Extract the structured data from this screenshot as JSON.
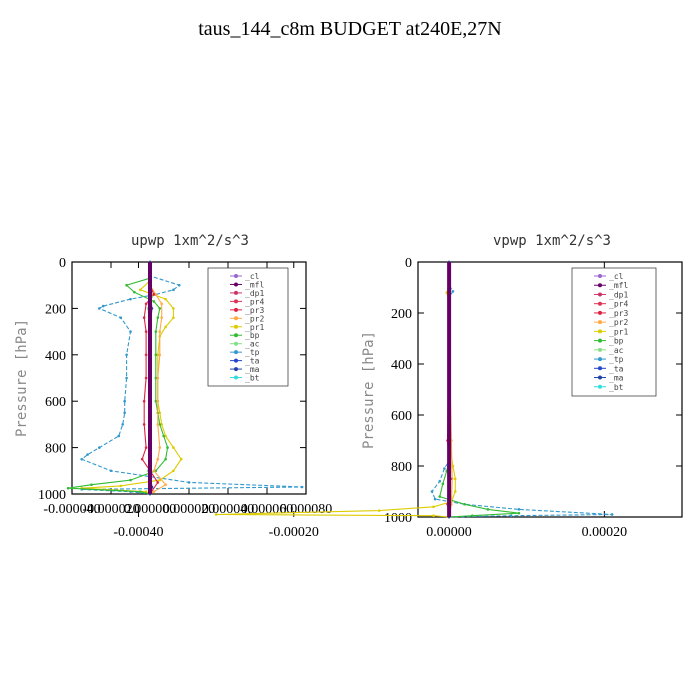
{
  "title": "taus_144_c8m  BUDGET at240E,27N",
  "chart_data": [
    {
      "type": "line",
      "title": "upwp  1xm^2/s^3",
      "ylabel": "Pressure [hPa]",
      "xlim": [
        -4e-05,
        8e-05
      ],
      "ylim": [
        1000,
        0
      ],
      "xticks": [
        "-0.000040",
        "-0.000020",
        "0.000000",
        "0.000020",
        "0.000040",
        "0.000060",
        "0.000080"
      ],
      "yticks": [
        "0",
        "200",
        "400",
        "600",
        "800",
        "1000"
      ],
      "legend": [
        "_cl",
        "_mfl",
        "_dp1",
        "_pr4",
        "_pr3",
        "_pr2",
        "_pr1",
        "_bp",
        "_ac",
        "_tp",
        "_ta",
        "_ma",
        "_bt"
      ],
      "series": [
        {
          "name": "_tp",
          "color": "#3399cc",
          "x": [
            0,
            0,
            1.5e-05,
            1.2e-05,
            3e-06,
            -1e-05,
            -2.4e-05,
            -2.6e-05,
            -1.5e-05,
            -1e-05,
            -1.2e-05,
            -1.2e-05,
            -1.3e-05,
            -1.3e-05,
            -1.4e-05,
            -1.6e-05,
            -2.6e-05,
            -3.2e-05,
            -3.5e-05,
            -2e-05,
            2e-05,
            7.8e-05,
            -3.5e-05,
            -1e-05,
            0
          ],
          "y": [
            0,
            60,
            100,
            120,
            140,
            160,
            190,
            200,
            240,
            300,
            400,
            500,
            600,
            650,
            700,
            750,
            800,
            830,
            850,
            900,
            950,
            970,
            980,
            990,
            1000
          ]
        },
        {
          "name": "_pr1",
          "color": "#ddcc00",
          "x": [
            0,
            0,
            -5e-06,
            8e-06,
            1.2e-05,
            1.2e-05,
            8e-06,
            5e-06,
            4e-06,
            4e-06,
            4e-06,
            5e-06,
            6e-06,
            8e-06,
            1.2e-05,
            1.6e-05,
            1.2e-05,
            5e-06,
            -1.5e-05,
            -3.5e-05,
            -2e-06,
            0
          ],
          "y": [
            0,
            80,
            120,
            160,
            200,
            240,
            280,
            320,
            400,
            500,
            600,
            650,
            700,
            750,
            800,
            850,
            900,
            940,
            965,
            975,
            990,
            1000
          ]
        },
        {
          "name": "_bp",
          "color": "#33bb33",
          "x": [
            0,
            0,
            -1.2e-05,
            -8e-06,
            2e-06,
            5e-06,
            4e-06,
            3e-06,
            3e-06,
            3e-06,
            3e-06,
            4e-06,
            5e-06,
            7e-06,
            9e-06,
            8e-06,
            3e-06,
            -1e-05,
            -3e-05,
            -4.2e-05,
            -5e-06,
            0
          ],
          "y": [
            0,
            70,
            100,
            130,
            170,
            200,
            240,
            300,
            400,
            500,
            600,
            650,
            700,
            750,
            800,
            850,
            900,
            940,
            960,
            975,
            990,
            1000
          ]
        },
        {
          "name": "_pr2",
          "color": "#ffaa44",
          "x": [
            0,
            0,
            3e-06,
            6e-06,
            6e-06,
            5e-06,
            5e-06,
            4e-06,
            4e-06,
            4e-06,
            5e-06,
            4e-06,
            2e-06,
            8e-06,
            2e-06,
            0
          ],
          "y": [
            0,
            100,
            140,
            180,
            240,
            300,
            400,
            500,
            600,
            700,
            800,
            850,
            900,
            960,
            990,
            1000
          ]
        },
        {
          "name": "_pr3",
          "color": "#dd2244",
          "x": [
            0,
            0,
            2e-06,
            -2e-06,
            -3e-06,
            -2e-06,
            -2e-06,
            -2e-06,
            -3e-06,
            -3e-06,
            -2e-06,
            -4e-06,
            4e-06,
            0
          ],
          "y": [
            0,
            100,
            140,
            180,
            240,
            300,
            400,
            500,
            600,
            700,
            800,
            850,
            950,
            1000
          ]
        },
        {
          "name": "_ac",
          "color": "#88dd88",
          "x": [
            0,
            0,
            1e-06,
            -1e-06,
            0,
            0,
            0,
            0,
            -1e-06,
            1e-06,
            0
          ],
          "y": [
            0,
            100,
            150,
            200,
            300,
            500,
            700,
            800,
            900,
            970,
            1000
          ]
        },
        {
          "name": "_ma",
          "color": "#2244aa",
          "x": [
            0,
            0,
            1e-06,
            0,
            0,
            0,
            0,
            0,
            1e-06,
            0
          ],
          "y": [
            0,
            120,
            200,
            300,
            500,
            700,
            800,
            900,
            970,
            1000
          ]
        },
        {
          "name": "_mfl",
          "color": "#660066",
          "x": [
            0,
            0
          ],
          "y": [
            0,
            1000
          ]
        }
      ]
    },
    {
      "type": "line",
      "title": "vpwp  1xm^2/s^3",
      "ylabel": "Pressure [hPa]",
      "xlim": [
        -4e-05,
        0.0003
      ],
      "ylim": [
        1000,
        0
      ],
      "xticks": [
        "-0.00040",
        "-0.00020",
        "0.00000",
        "0.00020"
      ],
      "yticks": [
        "0",
        "200",
        "400",
        "600",
        "800",
        "1000"
      ],
      "legend": [
        "_cl",
        "_mfl",
        "_dp1",
        "_pr4",
        "_pr3",
        "_pr2",
        "_pr1",
        "_bp",
        "_ac",
        "_tp",
        "_ta",
        "_ma",
        "_bt"
      ],
      "series": [
        {
          "name": "_tp",
          "color": "#3399cc",
          "x": [
            0,
            0,
            5e-06,
            0,
            0,
            0,
            0,
            0,
            -6e-06,
            -1.2e-05,
            -2.2e-05,
            -1.8e-05,
            2e-05,
            9e-05,
            0.00021,
            8e-05,
            0
          ],
          "y": [
            0,
            90,
            115,
            140,
            300,
            500,
            700,
            780,
            810,
            860,
            900,
            930,
            950,
            970,
            990,
            995,
            1000
          ]
        },
        {
          "name": "_pr1",
          "color": "#ddcc00",
          "x": [
            0,
            0,
            -3e-06,
            0,
            0,
            0,
            5e-06,
            8e-06,
            8e-06,
            3e-06,
            -2e-05,
            -9e-05,
            -0.0003,
            -2e-05,
            0
          ],
          "y": [
            0,
            90,
            120,
            160,
            500,
            700,
            800,
            850,
            900,
            940,
            960,
            975,
            990,
            995,
            1000
          ]
        },
        {
          "name": "_bp",
          "color": "#33bb33",
          "x": [
            0,
            0,
            0,
            0,
            -3e-06,
            -8e-06,
            -1.2e-05,
            2e-05,
            5e-05,
            9e-05,
            3e-05,
            0
          ],
          "y": [
            0,
            200,
            500,
            780,
            820,
            870,
            920,
            950,
            970,
            985,
            995,
            1000
          ]
        },
        {
          "name": "_pr2",
          "color": "#ffaa44",
          "x": [
            0,
            0,
            3e-06,
            4e-06,
            3e-06,
            0
          ],
          "y": [
            0,
            300,
            700,
            850,
            950,
            1000
          ]
        },
        {
          "name": "_pr3",
          "color": "#dd2244",
          "x": [
            0,
            0,
            -2e-06,
            2e-06,
            -2e-06,
            0
          ],
          "y": [
            0,
            300,
            700,
            850,
            950,
            1000
          ]
        },
        {
          "name": "_ac",
          "color": "#88dd88",
          "x": [
            0,
            0,
            1e-06,
            -1e-06,
            0
          ],
          "y": [
            0,
            400,
            800,
            950,
            1000
          ]
        },
        {
          "name": "_ma",
          "color": "#2244aa",
          "x": [
            0,
            0,
            1e-06,
            0
          ],
          "y": [
            0,
            500,
            900,
            1000
          ]
        },
        {
          "name": "_mfl",
          "color": "#660066",
          "x": [
            0,
            0
          ],
          "y": [
            0,
            1000
          ]
        }
      ]
    }
  ],
  "legend_markers": {
    "_cl": "#9966cc",
    "_mfl": "#660066",
    "_dp1": "#cc3366",
    "_pr4": "#dd3355",
    "_pr3": "#dd2244",
    "_pr2": "#ffaa44",
    "_pr1": "#ddcc00",
    "_bp": "#33bb33",
    "_ac": "#88dd88",
    "_tp": "#3399cc",
    "_ta": "#2244cc",
    "_ma": "#2244aa",
    "_bt": "#33dddd"
  }
}
